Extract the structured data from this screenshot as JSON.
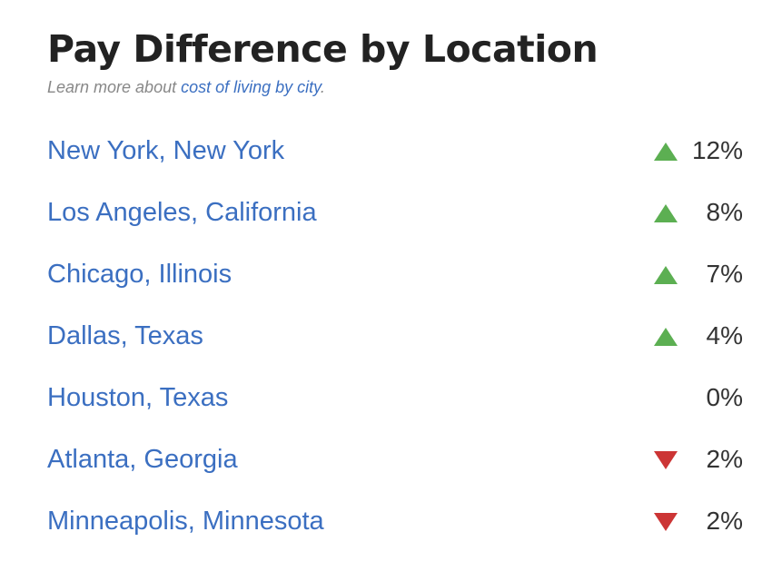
{
  "title": "Pay Difference by Location",
  "subtitle": {
    "prefix": "Learn more about ",
    "link_text": "cost of living by city",
    "suffix": "."
  },
  "colors": {
    "up": "#5caf52",
    "down": "#cc3535",
    "link": "#3b6fc1"
  },
  "locations": [
    {
      "city": "New York, New York",
      "direction": "up",
      "value": "12%"
    },
    {
      "city": "Los Angeles, California",
      "direction": "up",
      "value": "8%"
    },
    {
      "city": "Chicago, Illinois",
      "direction": "up",
      "value": "7%"
    },
    {
      "city": "Dallas, Texas",
      "direction": "up",
      "value": "4%"
    },
    {
      "city": "Houston, Texas",
      "direction": "none",
      "value": "0%"
    },
    {
      "city": "Atlanta, Georgia",
      "direction": "down",
      "value": "2%"
    },
    {
      "city": "Minneapolis, Minnesota",
      "direction": "down",
      "value": "2%"
    }
  ]
}
